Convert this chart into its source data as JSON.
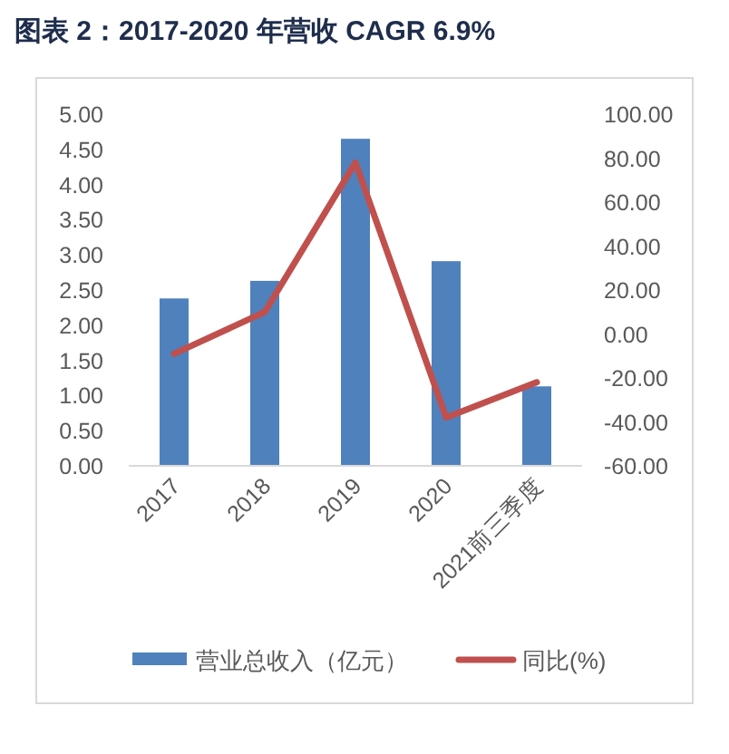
{
  "chart_data": {
    "type": "bar",
    "title": "图表 2：2017-2020 年营收 CAGR 6.9%",
    "categories": [
      "2017",
      "2018",
      "2019",
      "2020",
      "2021前三季度"
    ],
    "series": [
      {
        "name": "营业总收入（亿元）",
        "color": "#4f81bd",
        "values": [
          2.38,
          2.63,
          4.65,
          2.91,
          1.13
        ]
      },
      {
        "name": "同比(%)",
        "type": "line",
        "axis": "y2",
        "color": "#c0504d",
        "values": [
          -9,
          10,
          78,
          -38,
          -22
        ]
      }
    ],
    "ylim": [
      0,
      5
    ],
    "yticks": [
      {
        "value": 0,
        "label": "0.00"
      },
      {
        "value": 0.5,
        "label": "0.50"
      },
      {
        "value": 1,
        "label": "1.00"
      },
      {
        "value": 1.5,
        "label": "1.50"
      },
      {
        "value": 2,
        "label": "2.00"
      },
      {
        "value": 2.5,
        "label": "2.50"
      },
      {
        "value": 3,
        "label": "3.00"
      },
      {
        "value": 3.5,
        "label": "3.50"
      },
      {
        "value": 4,
        "label": "4.00"
      },
      {
        "value": 4.5,
        "label": "4.50"
      },
      {
        "value": 5,
        "label": "5.00"
      }
    ],
    "y2lim": [
      -60,
      100
    ],
    "y2ticks": [
      {
        "value": -60,
        "label": "-60.00"
      },
      {
        "value": -40,
        "label": "-40.00"
      },
      {
        "value": -20,
        "label": "-20.00"
      },
      {
        "value": 0,
        "label": "0.00"
      },
      {
        "value": 20,
        "label": "20.00"
      },
      {
        "value": 40,
        "label": "40.00"
      },
      {
        "value": 60,
        "label": "60.00"
      },
      {
        "value": 80,
        "label": "80.00"
      },
      {
        "value": 100,
        "label": "100.00"
      }
    ],
    "legend": "bottom",
    "grid": false
  }
}
